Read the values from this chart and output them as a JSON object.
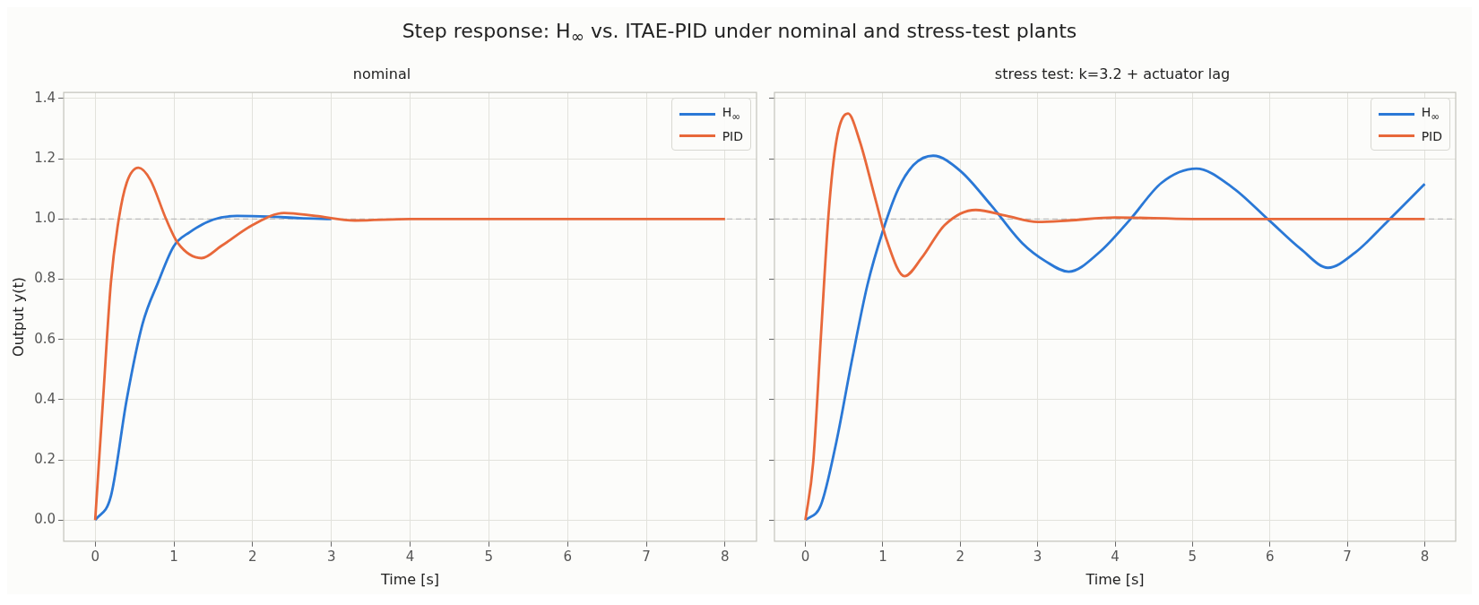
{
  "chart_data": [
    {
      "type": "line",
      "title": "Step response: H$_{∞}$ vs. ITAE-PID under nominal and stress-test plants",
      "subtitle": "nominal",
      "xlabel": "Time [s]",
      "ylabel": "Output y(t)",
      "xlim": [
        -0.4,
        8.4
      ],
      "ylim": [
        -0.07,
        1.42
      ],
      "xticks": [
        0,
        1,
        2,
        3,
        4,
        5,
        6,
        7,
        8
      ],
      "yticks": [
        {
          "value": 0,
          "label": "0.0"
        },
        {
          "value": 0.2,
          "label": "0.2"
        },
        {
          "value": 0.4,
          "label": "0.4"
        },
        {
          "value": 0.6,
          "label": "0.6"
        },
        {
          "value": 0.8,
          "label": "0.8"
        },
        {
          "value": 1,
          "label": "1.0"
        },
        {
          "value": 1.2,
          "label": "1.2"
        },
        {
          "value": 1.4,
          "label": "1.4"
        }
      ],
      "grid": true,
      "legend": "top right",
      "marker": "none",
      "line_style": "solid",
      "series": [
        {
          "name": "H$_{∞}$",
          "color": "#2a78d6",
          "x": [
            0,
            0.2,
            0.4,
            0.6,
            0.8,
            1,
            1.2,
            1.5,
            1.8,
            2.2,
            2.6,
            3
          ],
          "values": [
            0,
            0.08,
            0.4,
            0.65,
            0.79,
            0.91,
            0.956,
            0.998,
            1.01,
            1.008,
            1.003,
            1
          ]
        },
        {
          "name": "PID",
          "color": "#e8683a",
          "x": [
            0,
            0.1,
            0.2,
            0.3,
            0.4,
            0.55,
            0.7,
            0.9,
            1.05,
            1.35,
            1.6,
            2,
            2.4,
            2.8,
            3.3,
            4,
            5,
            6,
            7,
            8
          ],
          "values": [
            0,
            0.4,
            0.79,
            1,
            1.12,
            1.17,
            1.13,
            1,
            0.92,
            0.87,
            0.91,
            0.98,
            1.02,
            1.01,
            0.995,
            1,
            1,
            1,
            1,
            1
          ]
        }
      ],
      "ref_lines": [
        {
          "axis": "y",
          "value": 1,
          "color": "#bbbbbb",
          "line_style": "dashed"
        }
      ]
    },
    {
      "type": "line",
      "subtitle": "stress test: k=3.2 + actuator lag",
      "xlabel": "Time [s]",
      "xlim": [
        -0.4,
        8.4
      ],
      "ylim": [
        -0.07,
        1.42
      ],
      "xticks": [
        0,
        1,
        2,
        3,
        4,
        5,
        6,
        7,
        8
      ],
      "yticks": [
        0,
        0.2,
        0.4,
        0.6,
        0.8,
        1,
        1.2,
        1.4
      ],
      "tick_labels": "x",
      "grid": true,
      "legend": "top right",
      "marker": "none",
      "line_style": "solid",
      "series": [
        {
          "name": "H$_{∞}$",
          "color": "#2a78d6",
          "x": [
            0,
            0.2,
            0.4,
            0.6,
            0.8,
            1,
            1.2,
            1.4,
            1.65,
            2,
            2.4,
            2.8,
            3.1,
            3.4,
            3.8,
            4.2,
            4.6,
            5.05,
            5.5,
            6,
            6.4,
            6.75,
            7.1,
            7.5,
            8
          ],
          "values": [
            0,
            0.05,
            0.26,
            0.53,
            0.78,
            0.96,
            1.1,
            1.18,
            1.21,
            1.16,
            1.045,
            0.92,
            0.86,
            0.825,
            0.89,
            1,
            1.12,
            1.167,
            1.108,
            0.993,
            0.9,
            0.838,
            0.888,
            0.987,
            1.116
          ]
        },
        {
          "name": "PID",
          "color": "#e8683a",
          "x": [
            0,
            0.1,
            0.2,
            0.3,
            0.4,
            0.55,
            0.7,
            0.9,
            1.05,
            1.28,
            1.5,
            1.8,
            2.2,
            2.6,
            3,
            3.4,
            4,
            5,
            6,
            7,
            8
          ],
          "values": [
            0,
            0.19,
            0.61,
            1.02,
            1.26,
            1.35,
            1.26,
            1.07,
            0.93,
            0.81,
            0.87,
            0.98,
            1.03,
            1.01,
            0.99,
            0.995,
            1.005,
            1,
            1,
            1,
            1
          ]
        }
      ],
      "ref_lines": [
        {
          "axis": "y",
          "value": 1,
          "color": "#bbbbbb",
          "line_style": "dashed"
        }
      ]
    }
  ]
}
